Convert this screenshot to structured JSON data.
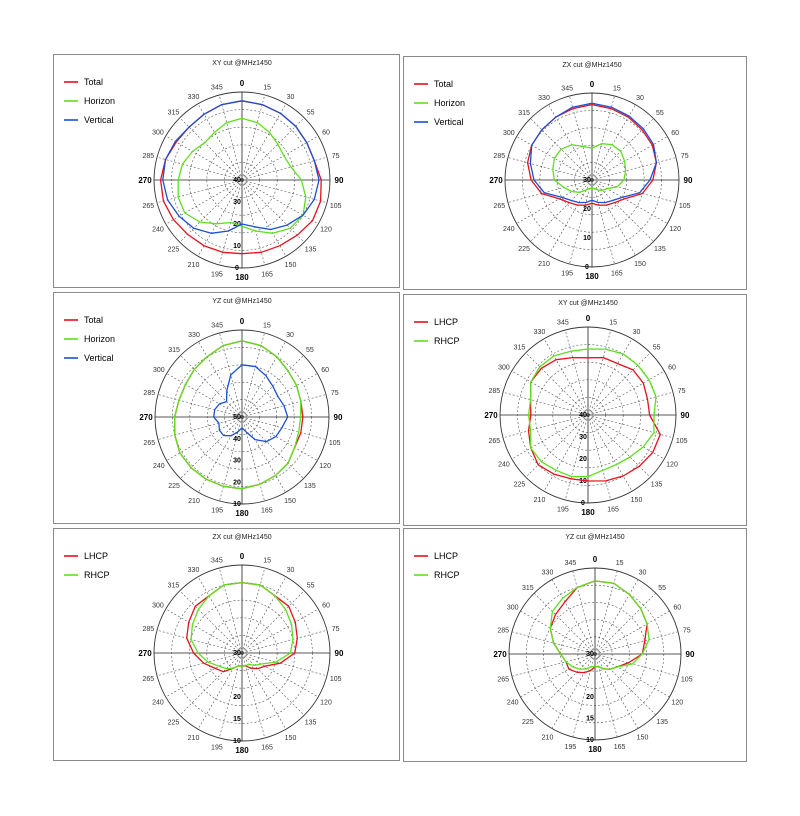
{
  "colors": {
    "total": "#e8101c",
    "horizon": "#5ee01e",
    "vertical": "#1a4fd6",
    "lhcp": "#e8101c",
    "rhcp": "#5ee01e"
  },
  "chart_data": [
    {
      "type": "polar-line",
      "title": "XY cut @MHz1450",
      "angle_labels": [
        "0",
        "15",
        "30",
        "55",
        "60",
        "75",
        "90",
        "105",
        "120",
        "135",
        "150",
        "165",
        "180",
        "195",
        "210",
        "225",
        "240",
        "265",
        "270",
        "285",
        "300",
        "315",
        "330",
        "345"
      ],
      "radial_labels": [
        "0",
        "10",
        "20",
        "30",
        "40"
      ],
      "radial_range": [
        40,
        0
      ],
      "series": [
        {
          "name": "Total",
          "color": "total",
          "r": [
            4,
            4.5,
            5,
            5.5,
            6,
            6,
            4,
            3,
            3,
            4.5,
            5.5,
            6,
            6.5,
            6,
            5.5,
            5,
            4,
            3,
            3,
            4,
            5.5,
            6,
            5.5,
            4.5
          ]
        },
        {
          "name": "Horizon",
          "color": "horizon",
          "r": [
            12,
            13,
            15,
            17,
            18,
            17,
            13,
            10,
            8,
            9,
            12,
            16,
            19,
            20,
            17,
            13,
            10,
            10,
            11,
            12,
            14,
            16,
            15,
            13
          ]
        },
        {
          "name": "Vertical",
          "color": "vertical",
          "r": [
            4,
            4.5,
            5,
            5.5,
            6,
            6,
            5,
            6,
            8,
            11,
            14,
            18,
            20,
            16,
            12,
            9,
            7,
            5,
            4,
            4,
            5,
            6,
            5.5,
            4.5
          ]
        }
      ]
    },
    {
      "type": "polar-line",
      "title": "ZX cut @MHz1450",
      "angle_labels": [
        "0",
        "15",
        "30",
        "55",
        "60",
        "75",
        "90",
        "105",
        "120",
        "135",
        "150",
        "165",
        "180",
        "195",
        "210",
        "225",
        "240",
        "265",
        "270",
        "285",
        "300",
        "315",
        "330",
        "345"
      ],
      "radial_labels": [
        "0",
        "10",
        "20",
        "30"
      ],
      "radial_range": [
        30,
        0
      ],
      "series": [
        {
          "name": "Total",
          "color": "total",
          "r": [
            4,
            4.5,
            5,
            5.5,
            6,
            7,
            9,
            12,
            17,
            19,
            20,
            21,
            22,
            21,
            20,
            19,
            17,
            12,
            9,
            7,
            6,
            5.5,
            5,
            4.5
          ]
        },
        {
          "name": "Horizon",
          "color": "horizon",
          "r": [
            19,
            17,
            16,
            16,
            17,
            18,
            19,
            21,
            24,
            25,
            26,
            27,
            27,
            27,
            26,
            24,
            22,
            20,
            17,
            16,
            15,
            15,
            16,
            18
          ]
        },
        {
          "name": "Vertical",
          "color": "vertical",
          "r": [
            3.5,
            4,
            4.5,
            5,
            5.5,
            7,
            10,
            13,
            18,
            20,
            21,
            22,
            23,
            22,
            21,
            20,
            18,
            13,
            10,
            8,
            6,
            5.5,
            5,
            4
          ]
        }
      ]
    },
    {
      "type": "polar-line",
      "title": "YZ cut @MHz1450",
      "angle_labels": [
        "0",
        "15",
        "30",
        "55",
        "60",
        "75",
        "90",
        "105",
        "120",
        "135",
        "150",
        "165",
        "180",
        "195",
        "210",
        "225",
        "240",
        "265",
        "270",
        "285",
        "300",
        "315",
        "330",
        "345"
      ],
      "radial_labels": [
        "10",
        "20",
        "30",
        "40",
        "50"
      ],
      "radial_range": [
        50,
        10
      ],
      "series": [
        {
          "name": "Total",
          "color": "total",
          "r": [
            15,
            16,
            18,
            20,
            21,
            22,
            22,
            22,
            22,
            20,
            19,
            18,
            17,
            17,
            17,
            17,
            17,
            18,
            19,
            20,
            20,
            19,
            18,
            16
          ]
        },
        {
          "name": "Horizon",
          "color": "horizon",
          "r": [
            15,
            16,
            18,
            20,
            21,
            22,
            23,
            23,
            22,
            20,
            19,
            18,
            17,
            17,
            17,
            17,
            17,
            18,
            19,
            20,
            20,
            19,
            18,
            16
          ]
        },
        {
          "name": "Vertical",
          "color": "vertical",
          "r": [
            26,
            26,
            28,
            30,
            31,
            30,
            29,
            31,
            32,
            34,
            38,
            43,
            45,
            43,
            40,
            38,
            38,
            39,
            37,
            37,
            38,
            40,
            36,
            30
          ]
        }
      ]
    },
    {
      "type": "polar-line",
      "title": "XY cut @MHz1450",
      "angle_labels": [
        "0",
        "15",
        "30",
        "55",
        "60",
        "75",
        "90",
        "105",
        "120",
        "135",
        "150",
        "165",
        "180",
        "195",
        "210",
        "225",
        "240",
        "265",
        "270",
        "285",
        "300",
        "315",
        "330",
        "345"
      ],
      "radial_labels": [
        "0",
        "10",
        "20",
        "30",
        "40"
      ],
      "radial_range": [
        40,
        0
      ],
      "series": [
        {
          "name": "LHCP",
          "color": "lhcp",
          "r": [
            14,
            13,
            13,
            11,
            11,
            12,
            12,
            6,
            6,
            7,
            8,
            9,
            10,
            10,
            9,
            8,
            10,
            12,
            14,
            13,
            10,
            10,
            11,
            13
          ]
        },
        {
          "name": "RHCP",
          "color": "rhcp",
          "r": [
            10,
            9,
            8,
            8,
            8,
            8,
            10,
            9,
            11,
            13,
            14,
            14,
            12,
            11,
            11,
            10,
            10,
            13,
            13,
            13,
            10,
            9,
            9,
            10
          ]
        }
      ]
    },
    {
      "type": "polar-line",
      "title": "ZX cut @MHz1450",
      "angle_labels": [
        "0",
        "15",
        "30",
        "55",
        "60",
        "75",
        "90",
        "105",
        "120",
        "135",
        "150",
        "165",
        "180",
        "195",
        "210",
        "225",
        "240",
        "265",
        "270",
        "285",
        "300",
        "315",
        "330",
        "345"
      ],
      "radial_labels": [
        "10",
        "15",
        "20",
        "30"
      ],
      "radial_range": [
        30,
        10
      ],
      "series": [
        {
          "name": "LHCP",
          "color": "lhcp",
          "r": [
            14,
            14,
            15,
            15,
            16,
            17,
            18,
            21,
            24,
            25,
            26,
            27,
            27,
            27,
            26,
            24,
            23,
            21,
            19,
            17,
            16,
            15,
            15,
            14
          ]
        },
        {
          "name": "RHCP",
          "color": "rhcp",
          "r": [
            14,
            14,
            15,
            16,
            17,
            18,
            19,
            22,
            25,
            26,
            27,
            27,
            27,
            27,
            26,
            25,
            24,
            22,
            20,
            18,
            17,
            16,
            15,
            14
          ]
        }
      ]
    },
    {
      "type": "polar-line",
      "title": "YZ cut @MHz1450",
      "angle_labels": [
        "0",
        "15",
        "30",
        "55",
        "60",
        "75",
        "90",
        "105",
        "120",
        "135",
        "150",
        "165",
        "180",
        "195",
        "210",
        "225",
        "240",
        "265",
        "270",
        "285",
        "300",
        "315",
        "330",
        "345"
      ],
      "radial_labels": [
        "10",
        "15",
        "20",
        "30"
      ],
      "radial_range": [
        30,
        10
      ],
      "series": [
        {
          "name": "LHCP",
          "color": "lhcp",
          "r": [
            13,
            13,
            14,
            15,
            16,
            18,
            19,
            22,
            24,
            25,
            26,
            27,
            27,
            26,
            25,
            24,
            23,
            23,
            22,
            20,
            18,
            17,
            16,
            14
          ]
        },
        {
          "name": "RHCP",
          "color": "rhcp",
          "r": [
            13,
            13,
            14,
            15,
            16,
            17,
            19,
            21,
            24,
            25,
            26,
            27,
            27,
            27,
            26,
            25,
            24,
            23,
            22,
            20,
            18,
            16,
            15,
            14
          ]
        }
      ]
    }
  ]
}
